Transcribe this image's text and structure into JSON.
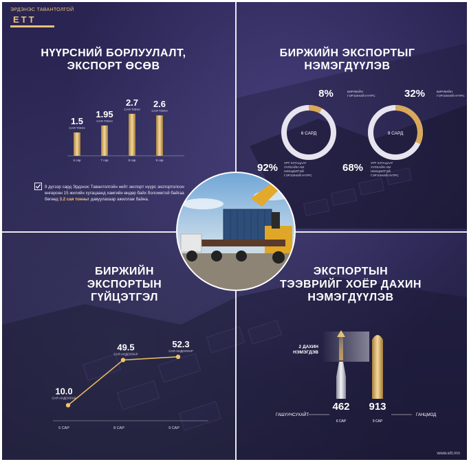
{
  "logo": {
    "subtitle": "ЭРДЭНЭС ТАВАНТОЛГОЙ",
    "wordmark": "ЕТТ"
  },
  "footer": {
    "url": "www.ett.mn"
  },
  "colors": {
    "gold": "#e8c27a",
    "gold_dark": "#a9833f",
    "background": "#2a2452",
    "silver": "#d8d8e0"
  },
  "panels": {
    "q1": {
      "title_line1": "НҮҮРСНИЙ БОРЛУУЛАЛТ,",
      "title_line2": "ЭКСПОРТ ӨСӨВ",
      "note_before": "9 дүгээр сард Эрдэнэс Тавантолгойн нийт экспорт нүүрс экспортолсон өнгөрсөн 15 жилийн хугацаанд хамгийн өндөр байх боломжтой байгаа бөгөөд ",
      "note_highlight": "3.2 сая тонн",
      "note_after": "ыг давуулахаар ажиллаж байна."
    },
    "q2": {
      "title_line1": "БИРЖИЙН ЭКСПОРТЫГ",
      "title_line2": "НЭМЭГДҮҮЛЭВ"
    },
    "q3": {
      "title_line1": "БИРЖИЙН",
      "title_line2": "ЭКСПОРТЫН",
      "title_line3": "ГҮЙЦЭТГЭЛ"
    },
    "q4": {
      "title_line1": "ЭКСПОРТЫН",
      "title_line2": "ТЭЭВРИЙГ ХОЁР ДАХИН",
      "title_line3": "НЭМЭГДҮҮЛЭВ",
      "double_label_line1": "2 ДАХИН",
      "double_label_line2": "НЭМЭГДЭВ",
      "values": [
        "462",
        "913"
      ],
      "periods": [
        "6 САР",
        "9 САР"
      ],
      "location_left": "ГАШУУНСУХАЙТ",
      "location_right": "ГАНЦМОД"
    }
  },
  "chart_data": [
    {
      "type": "bar",
      "categories": [
        "6 сар",
        "7 сар",
        "8 сар",
        "9 сар"
      ],
      "values": [
        1.5,
        1.95,
        2.7,
        2.6
      ],
      "value_labels": [
        "1.5",
        "1.95",
        "2.7",
        "2.6"
      ],
      "unit_label": "САЯ ТОНН",
      "ylim": [
        0,
        3
      ]
    },
    {
      "type": "pie",
      "variant": "donut",
      "center_label": "6 САРД",
      "slices": [
        {
          "value": 8,
          "label": "8%",
          "desc_line1": "БИРЖИЙН",
          "desc_line2": "ГЭРЭЭНИЙ НҮҮРС",
          "highlight": true
        },
        {
          "value": 92,
          "label": "92%",
          "desc_line1": "УРТ ХУГАЦААТ",
          "desc_line2": "УУЛХАЙН АМ",
          "desc_line3": "НӨХЦӨЛТЭЙ",
          "desc_line4": "ГЭРЭЭНИЙ НҮҮРС",
          "highlight": false
        }
      ]
    },
    {
      "type": "pie",
      "variant": "donut",
      "center_label": "9 САРД",
      "slices": [
        {
          "value": 32,
          "label": "32%",
          "desc_line1": "БИРЖИЙН",
          "desc_line2": "ГЭРЭЭНИЙ НҮҮРС",
          "highlight": true
        },
        {
          "value": 68,
          "label": "68%",
          "desc_line1": "УРТ ХУГАЦААТ",
          "desc_line2": "УУЛХАЙН АМ",
          "desc_line3": "НӨХЦӨЛТЭЙ",
          "desc_line4": "ГЭРЭЭНИЙ НҮҮРС",
          "highlight": false
        }
      ]
    },
    {
      "type": "line",
      "categories": [
        "6 САР",
        "8 САР",
        "9 САР"
      ],
      "values": [
        10.0,
        49.5,
        52.3
      ],
      "value_labels": [
        "10.0",
        "49.5",
        "52.3"
      ],
      "unit_label": "САЯ АНДОЛЛАР",
      "ylim": [
        0,
        60
      ]
    }
  ]
}
